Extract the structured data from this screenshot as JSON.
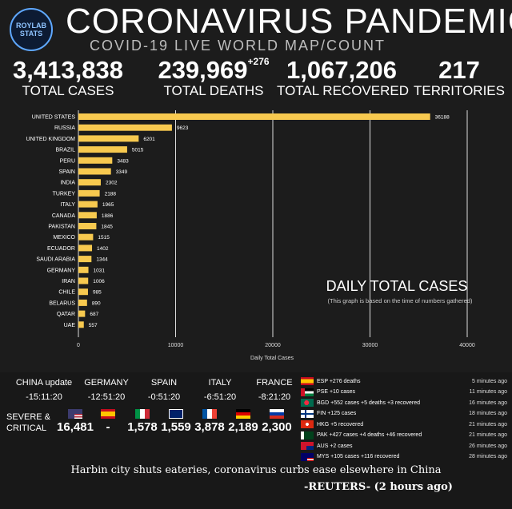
{
  "logo": {
    "line1": "ROYLAB",
    "line2": "STATS"
  },
  "header": {
    "title": "CORONAVIRUS PANDEMIC",
    "subtitle": "COVID-19 LIVE WORLD MAP/COUNT"
  },
  "stats": {
    "cases": {
      "value": "3,413,838",
      "label": "TOTAL CASES"
    },
    "deaths": {
      "value": "239,969",
      "delta": "+276",
      "label": "TOTAL DEATHS"
    },
    "recovered": {
      "value": "1,067,206",
      "label": "TOTAL RECOVERED"
    },
    "territories": {
      "value": "217",
      "label": "TERRITORIES"
    }
  },
  "chart_data": {
    "type": "bar",
    "orientation": "horizontal",
    "categories": [
      "UNITED STATES",
      "RUSSIA",
      "UNITED KINGDOM",
      "BRAZIL",
      "PERU",
      "SPAIN",
      "INDIA",
      "TURKEY",
      "ITALY",
      "CANADA",
      "PAKISTAN",
      "MEXICO",
      "ECUADOR",
      "SAUDI ARABIA",
      "GERMANY",
      "IRAN",
      "CHILE",
      "BELARUS",
      "QATAR",
      "UAE"
    ],
    "values": [
      36188,
      9623,
      6201,
      5015,
      3483,
      3349,
      2302,
      2188,
      1965,
      1886,
      1845,
      1515,
      1402,
      1344,
      1031,
      1006,
      985,
      890,
      687,
      557
    ],
    "xticks": [
      "0",
      "10000",
      "20000",
      "30000",
      "40000"
    ],
    "xlim": [
      0,
      40000
    ],
    "xlabel": "Daily Total Cases",
    "annotation_title": "DAILY TOTAL CASES",
    "annotation_note": "(This graph is based on the time of numbers gathered)",
    "bar_color": "#f7c94f",
    "grid": true
  },
  "times": [
    {
      "country": "CHINA update",
      "time": "-15:11:20"
    },
    {
      "country": "GERMANY",
      "time": "-12:51:20"
    },
    {
      "country": "SPAIN",
      "time": "-0:51:20"
    },
    {
      "country": "ITALY",
      "time": "-6:51:20"
    },
    {
      "country": "FRANCE",
      "time": "-8:21:20"
    }
  ],
  "severe": {
    "label_line1": "SEVERE &",
    "label_line2": "CRITICAL",
    "items": [
      {
        "flag": "usa",
        "value": "16,481"
      },
      {
        "flag": "spain",
        "value": "-"
      },
      {
        "flag": "italy",
        "value": "1,578"
      },
      {
        "flag": "uk",
        "value": "1,559"
      },
      {
        "flag": "france",
        "value": "3,878"
      },
      {
        "flag": "germany",
        "value": "2,189"
      },
      {
        "flag": "russia",
        "value": "2,300"
      }
    ]
  },
  "feed": [
    {
      "flag": "spain",
      "text": "ESP +276 deaths",
      "ago": "5 minutes ago"
    },
    {
      "flag": "palestine",
      "text": "PSE +10 cases",
      "ago": "11 minutes ago"
    },
    {
      "flag": "bangladesh",
      "text": "BGD +552 cases +5 deaths +3 recovered",
      "ago": "16 minutes ago"
    },
    {
      "flag": "finland",
      "text": "FIN +125 cases",
      "ago": "18 minutes ago"
    },
    {
      "flag": "hongkong",
      "text": "HKG +5 recovered",
      "ago": "21 minutes ago"
    },
    {
      "flag": "pakistan",
      "text": "PAK +427 cases +4 deaths +46 recovered",
      "ago": "21 minutes ago"
    },
    {
      "flag": "australia",
      "text": "AUS +2 cases",
      "ago": "26 minutes ago"
    },
    {
      "flag": "malaysia",
      "text": "MYS +105 cases +116 recovered",
      "ago": "28 minutes ago"
    }
  ],
  "news": {
    "headline": "Harbin city shuts eateries, coronavirus curbs ease elsewhere in China",
    "source": "-REUTERS- (2 hours ago)"
  }
}
